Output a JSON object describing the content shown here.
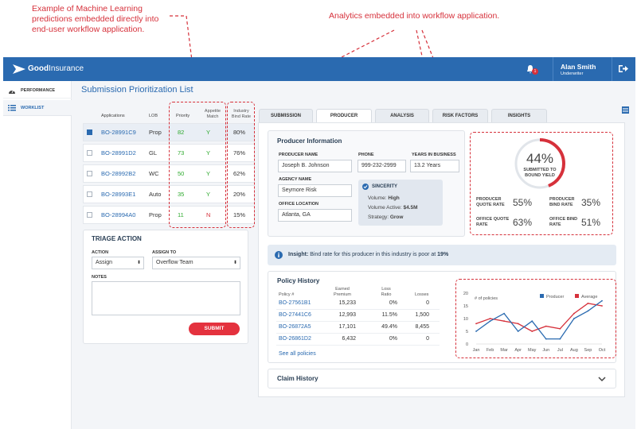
{
  "annotations": {
    "ml_note": "Example of Machine Learning predictions embedded directly into end-user workflow application.",
    "analytics_note": "Analytics embedded into workflow application."
  },
  "topbar": {
    "logo_bold": "Good",
    "logo_light": "Insurance",
    "bell_count": "1",
    "user_name": "Alan Smith",
    "user_role": "Underwriter"
  },
  "sidebar": {
    "items": [
      {
        "label": "PERFORMANCE",
        "icon": "speedometer-icon"
      },
      {
        "label": "WORKLIST",
        "icon": "list-icon"
      }
    ]
  },
  "page_title": "Submission Prioritization List",
  "worklist": {
    "headers": [
      "Applications",
      "LOB",
      "Priority",
      "Appetite Match",
      "Industry Bind Rate"
    ],
    "rows": [
      {
        "id": "BO-28991C9",
        "lob": "Prop",
        "priority": "82",
        "match": "Y",
        "bind": "80%",
        "checked": true
      },
      {
        "id": "BO-28991D2",
        "lob": "GL",
        "priority": "73",
        "match": "Y",
        "bind": "76%",
        "checked": false
      },
      {
        "id": "BO-28992B2",
        "lob": "WC",
        "priority": "50",
        "match": "Y",
        "bind": "62%",
        "checked": false
      },
      {
        "id": "BO-28993E1",
        "lob": "Auto",
        "priority": "35",
        "match": "Y",
        "bind": "20%",
        "checked": false
      },
      {
        "id": "BO-28994A0",
        "lob": "Prop",
        "priority": "11",
        "match": "N",
        "bind": "15%",
        "checked": false
      }
    ]
  },
  "triage": {
    "title": "TRIAGE ACTION",
    "action_label": "ACTION",
    "action_value": "Assign",
    "assign_label": "ASSIGN TO",
    "assign_value": "Overflow Team",
    "notes_label": "NOTES",
    "submit_label": "SUBMIT"
  },
  "tabs": [
    "SUBMISSION",
    "PRODUCER",
    "ANALYSIS",
    "RISK FACTORS",
    "INSIGHTS"
  ],
  "producer": {
    "title": "Producer Information",
    "name_label": "PRODUCER NAME",
    "name_value": "Joseph B. Johnson",
    "phone_label": "PHONE",
    "phone_value": "999-232-2999",
    "years_label": "YEARS IN BUSINESS",
    "years_value": "13.2 Years",
    "agency_label": "AGENCY NAME",
    "agency_value": "Seymore Risk",
    "office_label": "OFFICE LOCATION",
    "office_value": "Atlanta, GA",
    "sincerity_title": "SINCERITY",
    "volume_label": "Volume:",
    "volume_value": "High",
    "volume_active_label": "Volume Active:",
    "volume_active_value": "$4.5M",
    "strategy_label": "Strategy:",
    "strategy_value": "Grow"
  },
  "analytics": {
    "gauge_value": "44%",
    "gauge_fraction": 0.44,
    "gauge_label": "SUBMITTED TO BOUND YIELD",
    "stats": [
      {
        "label": "PRODUCER QUOTE RATE",
        "value": "55%"
      },
      {
        "label": "PRODUCER BIND RATE",
        "value": "35%"
      },
      {
        "label": "OFFICE QUOTE RATE",
        "value": "63%"
      },
      {
        "label": "OFFICE BIND RATE",
        "value": "51%"
      }
    ]
  },
  "insight": {
    "prefix": "Insight:",
    "text": "Bind rate for this producer in this industry is poor at",
    "value": "19%"
  },
  "policy_history": {
    "title": "Policy History",
    "headers": [
      "Policy #",
      "Earned Premium",
      "Loss Ratio",
      "Losses"
    ],
    "rows": [
      {
        "policy": "BO-27561B1",
        "premium": "15,233",
        "ratio": "0%",
        "losses": "0"
      },
      {
        "policy": "BO-27441C6",
        "premium": "12,993",
        "ratio": "11.5%",
        "losses": "1,500"
      },
      {
        "policy": "BO-26872A5",
        "premium": "17,101",
        "ratio": "49.4%",
        "losses": "8,455"
      },
      {
        "policy": "BO-26861D2",
        "premium": "6,432",
        "ratio": "0%",
        "losses": "0"
      }
    ],
    "see_all": "See all policies"
  },
  "claim_history": {
    "title": "Claim History"
  },
  "colors": {
    "brand": "#2a6ab0",
    "accent": "#d6313b",
    "producer": "#2a6ab0",
    "average": "#d6313b"
  },
  "chart_data": {
    "type": "line",
    "title": "",
    "ylabel": "# of policies",
    "ylim": [
      0,
      20
    ],
    "yticks": [
      0,
      5,
      10,
      15,
      20
    ],
    "categories": [
      "Jan",
      "Feb",
      "Mar",
      "Apr",
      "May",
      "Jun",
      "Jul",
      "Aug",
      "Sep",
      "Oct"
    ],
    "series": [
      {
        "name": "Producer",
        "color": "#2a6ab0",
        "values": [
          5,
          9,
          12,
          5,
          9,
          2,
          2,
          10,
          13,
          17
        ]
      },
      {
        "name": "Average",
        "color": "#d6313b",
        "values": [
          8,
          10,
          9,
          8,
          5,
          7,
          6,
          12,
          16,
          15
        ]
      }
    ],
    "legend": "top-right",
    "grid": false
  }
}
